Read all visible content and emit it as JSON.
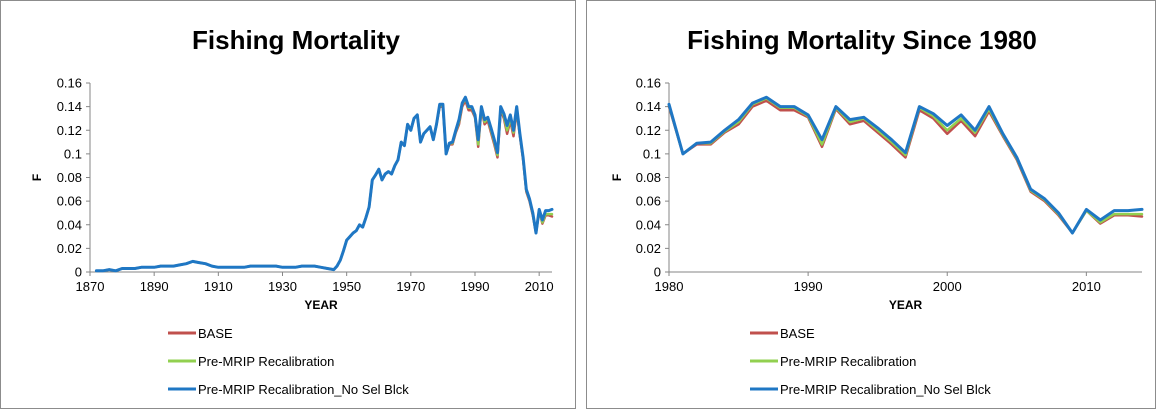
{
  "chart_data": [
    {
      "type": "line",
      "title": "Fishing Mortality",
      "xlabel": "YEAR",
      "ylabel": "F",
      "xlim": [
        1870,
        2014
      ],
      "ylim": [
        0,
        0.16
      ],
      "xticks": [
        1870,
        1890,
        1910,
        1930,
        1950,
        1970,
        1990,
        2010
      ],
      "yticks": [
        0,
        0.02,
        0.04,
        0.06,
        0.08,
        0.1,
        0.12,
        0.14,
        0.16
      ],
      "ytick_labels": [
        "0",
        "0.02",
        "0.04",
        "0.06",
        "0.08",
        "0.1",
        "0.12",
        "0.14",
        "0.16"
      ],
      "legend_position": "bottom",
      "series": [
        {
          "name": "BASE",
          "color": "#c0504d",
          "x": [
            1872,
            1874,
            1876,
            1878,
            1880,
            1882,
            1884,
            1886,
            1888,
            1890,
            1892,
            1894,
            1896,
            1898,
            1900,
            1902,
            1904,
            1906,
            1908,
            1910,
            1912,
            1914,
            1916,
            1918,
            1920,
            1922,
            1924,
            1926,
            1928,
            1930,
            1932,
            1934,
            1936,
            1938,
            1940,
            1942,
            1944,
            1946,
            1947,
            1948,
            1949,
            1950,
            1951,
            1952,
            1953,
            1954,
            1955,
            1956,
            1957,
            1958,
            1959,
            1960,
            1961,
            1962,
            1963,
            1964,
            1965,
            1966,
            1967,
            1968,
            1969,
            1970,
            1971,
            1972,
            1973,
            1974,
            1975,
            1976,
            1977,
            1978,
            1979,
            1980,
            1981,
            1982,
            1983,
            1984,
            1985,
            1986,
            1987,
            1988,
            1989,
            1990,
            1991,
            1992,
            1993,
            1994,
            1995,
            1996,
            1997,
            1998,
            1999,
            2000,
            2001,
            2002,
            2003,
            2004,
            2005,
            2006,
            2007,
            2008,
            2009,
            2010,
            2011,
            2012,
            2013,
            2014
          ],
          "y": [
            0.001,
            0.001,
            0.002,
            0.001,
            0.003,
            0.003,
            0.003,
            0.004,
            0.004,
            0.004,
            0.005,
            0.005,
            0.005,
            0.006,
            0.007,
            0.009,
            0.008,
            0.007,
            0.005,
            0.004,
            0.004,
            0.004,
            0.004,
            0.004,
            0.005,
            0.005,
            0.005,
            0.005,
            0.005,
            0.004,
            0.004,
            0.004,
            0.005,
            0.005,
            0.005,
            0.004,
            0.003,
            0.002,
            0.005,
            0.01,
            0.018,
            0.027,
            0.03,
            0.033,
            0.035,
            0.04,
            0.038,
            0.046,
            0.055,
            0.078,
            0.082,
            0.087,
            0.078,
            0.083,
            0.085,
            0.083,
            0.09,
            0.095,
            0.11,
            0.107,
            0.125,
            0.12,
            0.13,
            0.133,
            0.11,
            0.117,
            0.12,
            0.123,
            0.112,
            0.125,
            0.14,
            0.14,
            0.1,
            0.108,
            0.108,
            0.118,
            0.125,
            0.14,
            0.145,
            0.137,
            0.137,
            0.131,
            0.106,
            0.138,
            0.125,
            0.128,
            0.118,
            0.108,
            0.097,
            0.137,
            0.13,
            0.117,
            0.128,
            0.115,
            0.136,
            0.115,
            0.095,
            0.068,
            0.06,
            0.048,
            0.033,
            0.052,
            0.041,
            0.048,
            0.048,
            0.047
          ]
        },
        {
          "name": "Pre-MRIP Recalibration",
          "color": "#92d050",
          "x": [
            1872,
            1874,
            1876,
            1878,
            1880,
            1882,
            1884,
            1886,
            1888,
            1890,
            1892,
            1894,
            1896,
            1898,
            1900,
            1902,
            1904,
            1906,
            1908,
            1910,
            1912,
            1914,
            1916,
            1918,
            1920,
            1922,
            1924,
            1926,
            1928,
            1930,
            1932,
            1934,
            1936,
            1938,
            1940,
            1942,
            1944,
            1946,
            1947,
            1948,
            1949,
            1950,
            1951,
            1952,
            1953,
            1954,
            1955,
            1956,
            1957,
            1958,
            1959,
            1960,
            1961,
            1962,
            1963,
            1964,
            1965,
            1966,
            1967,
            1968,
            1969,
            1970,
            1971,
            1972,
            1973,
            1974,
            1975,
            1976,
            1977,
            1978,
            1979,
            1980,
            1981,
            1982,
            1983,
            1984,
            1985,
            1986,
            1987,
            1988,
            1989,
            1990,
            1991,
            1992,
            1993,
            1994,
            1995,
            1996,
            1997,
            1998,
            1999,
            2000,
            2001,
            2002,
            2003,
            2004,
            2005,
            2006,
            2007,
            2008,
            2009,
            2010,
            2011,
            2012,
            2013,
            2014
          ],
          "y": [
            0.001,
            0.001,
            0.002,
            0.001,
            0.003,
            0.003,
            0.003,
            0.004,
            0.004,
            0.004,
            0.005,
            0.005,
            0.005,
            0.006,
            0.007,
            0.009,
            0.008,
            0.007,
            0.005,
            0.004,
            0.004,
            0.004,
            0.004,
            0.004,
            0.005,
            0.005,
            0.005,
            0.005,
            0.005,
            0.004,
            0.004,
            0.004,
            0.005,
            0.005,
            0.005,
            0.004,
            0.003,
            0.002,
            0.005,
            0.01,
            0.018,
            0.027,
            0.03,
            0.033,
            0.035,
            0.04,
            0.038,
            0.046,
            0.055,
            0.078,
            0.082,
            0.087,
            0.078,
            0.083,
            0.085,
            0.083,
            0.09,
            0.095,
            0.11,
            0.107,
            0.125,
            0.12,
            0.13,
            0.133,
            0.11,
            0.117,
            0.12,
            0.123,
            0.112,
            0.125,
            0.141,
            0.141,
            0.1,
            0.109,
            0.109,
            0.119,
            0.127,
            0.142,
            0.147,
            0.139,
            0.139,
            0.132,
            0.108,
            0.139,
            0.127,
            0.13,
            0.12,
            0.11,
            0.099,
            0.139,
            0.132,
            0.12,
            0.13,
            0.118,
            0.138,
            0.116,
            0.096,
            0.069,
            0.061,
            0.049,
            0.033,
            0.052,
            0.042,
            0.049,
            0.049,
            0.049
          ]
        },
        {
          "name": "Pre-MRIP Recalibration_No Sel Blck",
          "color": "#1f77c4",
          "x": [
            1872,
            1874,
            1876,
            1878,
            1880,
            1882,
            1884,
            1886,
            1888,
            1890,
            1892,
            1894,
            1896,
            1898,
            1900,
            1902,
            1904,
            1906,
            1908,
            1910,
            1912,
            1914,
            1916,
            1918,
            1920,
            1922,
            1924,
            1926,
            1928,
            1930,
            1932,
            1934,
            1936,
            1938,
            1940,
            1942,
            1944,
            1946,
            1947,
            1948,
            1949,
            1950,
            1951,
            1952,
            1953,
            1954,
            1955,
            1956,
            1957,
            1958,
            1959,
            1960,
            1961,
            1962,
            1963,
            1964,
            1965,
            1966,
            1967,
            1968,
            1969,
            1970,
            1971,
            1972,
            1973,
            1974,
            1975,
            1976,
            1977,
            1978,
            1979,
            1980,
            1981,
            1982,
            1983,
            1984,
            1985,
            1986,
            1987,
            1988,
            1989,
            1990,
            1991,
            1992,
            1993,
            1994,
            1995,
            1996,
            1997,
            1998,
            1999,
            2000,
            2001,
            2002,
            2003,
            2004,
            2005,
            2006,
            2007,
            2008,
            2009,
            2010,
            2011,
            2012,
            2013,
            2014
          ],
          "y": [
            0.001,
            0.001,
            0.002,
            0.001,
            0.003,
            0.003,
            0.003,
            0.004,
            0.004,
            0.004,
            0.005,
            0.005,
            0.005,
            0.006,
            0.007,
            0.009,
            0.008,
            0.007,
            0.005,
            0.004,
            0.004,
            0.004,
            0.004,
            0.004,
            0.005,
            0.005,
            0.005,
            0.005,
            0.005,
            0.004,
            0.004,
            0.004,
            0.005,
            0.005,
            0.005,
            0.004,
            0.003,
            0.002,
            0.005,
            0.01,
            0.018,
            0.027,
            0.03,
            0.033,
            0.035,
            0.04,
            0.038,
            0.046,
            0.055,
            0.078,
            0.082,
            0.087,
            0.078,
            0.083,
            0.085,
            0.083,
            0.09,
            0.095,
            0.11,
            0.107,
            0.125,
            0.12,
            0.13,
            0.133,
            0.11,
            0.117,
            0.12,
            0.123,
            0.112,
            0.125,
            0.142,
            0.142,
            0.1,
            0.109,
            0.11,
            0.12,
            0.129,
            0.143,
            0.148,
            0.14,
            0.14,
            0.133,
            0.112,
            0.14,
            0.129,
            0.131,
            0.122,
            0.112,
            0.101,
            0.14,
            0.134,
            0.124,
            0.133,
            0.12,
            0.14,
            0.117,
            0.097,
            0.07,
            0.062,
            0.05,
            0.033,
            0.053,
            0.044,
            0.052,
            0.052,
            0.053
          ]
        }
      ]
    },
    {
      "type": "line",
      "title": "Fishing Mortality Since 1980",
      "xlabel": "YEAR",
      "ylabel": "F",
      "xlim": [
        1980,
        2014
      ],
      "ylim": [
        0,
        0.16
      ],
      "xticks": [
        1980,
        1990,
        2000,
        2010
      ],
      "yticks": [
        0,
        0.02,
        0.04,
        0.06,
        0.08,
        0.1,
        0.12,
        0.14,
        0.16
      ],
      "ytick_labels": [
        "0",
        "0.02",
        "0.04",
        "0.06",
        "0.08",
        "0.1",
        "0.12",
        "0.14",
        "0.16"
      ],
      "legend_position": "bottom",
      "series": [
        {
          "name": "BASE",
          "color": "#c0504d",
          "x": [
            1980,
            1981,
            1982,
            1983,
            1984,
            1985,
            1986,
            1987,
            1988,
            1989,
            1990,
            1991,
            1992,
            1993,
            1994,
            1995,
            1996,
            1997,
            1998,
            1999,
            2000,
            2001,
            2002,
            2003,
            2004,
            2005,
            2006,
            2007,
            2008,
            2009,
            2010,
            2011,
            2012,
            2013,
            2014
          ],
          "y": [
            0.14,
            0.1,
            0.108,
            0.108,
            0.118,
            0.125,
            0.14,
            0.145,
            0.137,
            0.137,
            0.131,
            0.106,
            0.138,
            0.125,
            0.128,
            0.118,
            0.108,
            0.097,
            0.137,
            0.13,
            0.117,
            0.128,
            0.115,
            0.136,
            0.115,
            0.095,
            0.068,
            0.06,
            0.048,
            0.033,
            0.052,
            0.041,
            0.048,
            0.048,
            0.047
          ]
        },
        {
          "name": "Pre-MRIP Recalibration",
          "color": "#92d050",
          "x": [
            1980,
            1981,
            1982,
            1983,
            1984,
            1985,
            1986,
            1987,
            1988,
            1989,
            1990,
            1991,
            1992,
            1993,
            1994,
            1995,
            1996,
            1997,
            1998,
            1999,
            2000,
            2001,
            2002,
            2003,
            2004,
            2005,
            2006,
            2007,
            2008,
            2009,
            2010,
            2011,
            2012,
            2013,
            2014
          ],
          "y": [
            0.141,
            0.1,
            0.109,
            0.109,
            0.119,
            0.127,
            0.142,
            0.147,
            0.139,
            0.139,
            0.132,
            0.108,
            0.139,
            0.127,
            0.13,
            0.12,
            0.11,
            0.099,
            0.139,
            0.132,
            0.12,
            0.13,
            0.118,
            0.138,
            0.116,
            0.096,
            0.069,
            0.061,
            0.049,
            0.033,
            0.052,
            0.042,
            0.049,
            0.049,
            0.049
          ]
        },
        {
          "name": "Pre-MRIP Recalibration_No Sel Blck",
          "color": "#1f77c4",
          "x": [
            1980,
            1981,
            1982,
            1983,
            1984,
            1985,
            1986,
            1987,
            1988,
            1989,
            1990,
            1991,
            1992,
            1993,
            1994,
            1995,
            1996,
            1997,
            1998,
            1999,
            2000,
            2001,
            2002,
            2003,
            2004,
            2005,
            2006,
            2007,
            2008,
            2009,
            2010,
            2011,
            2012,
            2013,
            2014
          ],
          "y": [
            0.142,
            0.1,
            0.109,
            0.11,
            0.12,
            0.129,
            0.143,
            0.148,
            0.14,
            0.14,
            0.133,
            0.112,
            0.14,
            0.129,
            0.131,
            0.122,
            0.112,
            0.101,
            0.14,
            0.134,
            0.124,
            0.133,
            0.12,
            0.14,
            0.117,
            0.097,
            0.07,
            0.062,
            0.05,
            0.033,
            0.053,
            0.044,
            0.052,
            0.052,
            0.053
          ]
        }
      ]
    }
  ]
}
